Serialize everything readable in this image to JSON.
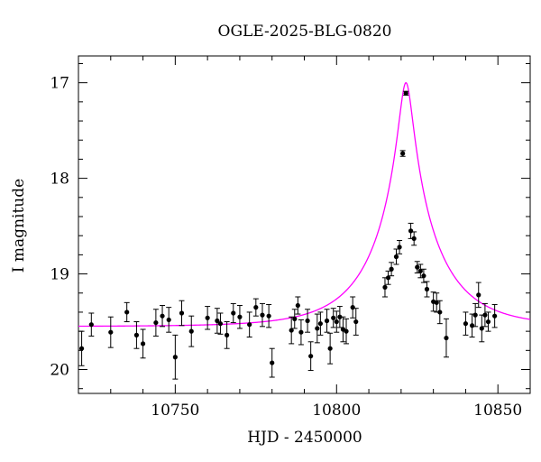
{
  "chart_data": {
    "type": "scatter",
    "title": "OGLE-2025-BLG-0820",
    "xlabel": "HJD - 2450000",
    "ylabel": "I magnitude",
    "xlim": [
      10720,
      10860
    ],
    "ylim": [
      20.25,
      16.72
    ],
    "y_inverted": true,
    "x_ticks": [
      10750,
      10800,
      10850
    ],
    "y_ticks": [
      17,
      18,
      19,
      20
    ],
    "grid": false,
    "legend": "none",
    "colors": {
      "points": "#000000",
      "model": "#ff00ff"
    },
    "model": {
      "kind": "microlensing-paczynski",
      "t0": 10821.5,
      "baseline_mag": 19.55,
      "peak_mag": 17.0
    },
    "series": [
      {
        "kind": "observations",
        "x": [
          10721,
          10724,
          10730,
          10735,
          10738,
          10740,
          10744,
          10746,
          10748,
          10750,
          10752,
          10755,
          10760,
          10763,
          10764,
          10766,
          10768,
          10770,
          10773,
          10775,
          10777,
          10779,
          10780,
          10786,
          10787,
          10788,
          10789,
          10791,
          10792,
          10794,
          10795,
          10797,
          10798,
          10799,
          10800,
          10801,
          10802,
          10803,
          10805,
          10806,
          10815,
          10816,
          10817,
          10818.5,
          10819.5,
          10820.5,
          10821.5,
          10823,
          10824,
          10825,
          10826,
          10827,
          10828,
          10830,
          10831,
          10832,
          10834,
          10840,
          10842,
          10843,
          10844,
          10845,
          10846,
          10847,
          10849
        ],
        "y": [
          19.78,
          19.53,
          19.61,
          19.4,
          19.64,
          19.73,
          19.51,
          19.44,
          19.48,
          19.87,
          19.41,
          19.6,
          19.46,
          19.49,
          19.52,
          19.64,
          19.41,
          19.45,
          19.53,
          19.35,
          19.43,
          19.44,
          19.93,
          19.59,
          19.47,
          19.33,
          19.61,
          19.49,
          19.86,
          19.57,
          19.52,
          19.49,
          19.78,
          19.46,
          19.5,
          19.45,
          19.58,
          19.6,
          19.35,
          19.5,
          19.14,
          19.04,
          18.95,
          18.82,
          18.72,
          17.74,
          17.11,
          18.55,
          18.63,
          18.93,
          18.97,
          19.02,
          19.16,
          19.29,
          19.3,
          19.4,
          19.67,
          19.52,
          19.54,
          19.43,
          19.22,
          19.57,
          19.43,
          19.5,
          19.44
        ],
        "err": [
          0.18,
          0.12,
          0.16,
          0.1,
          0.14,
          0.15,
          0.14,
          0.11,
          0.13,
          0.23,
          0.13,
          0.16,
          0.12,
          0.13,
          0.11,
          0.14,
          0.1,
          0.12,
          0.13,
          0.09,
          0.12,
          0.12,
          0.15,
          0.14,
          0.1,
          0.09,
          0.13,
          0.12,
          0.15,
          0.15,
          0.12,
          0.12,
          0.16,
          0.1,
          0.11,
          0.11,
          0.13,
          0.13,
          0.11,
          0.14,
          0.1,
          0.07,
          0.07,
          0.08,
          0.07,
          0.03,
          0.02,
          0.08,
          0.07,
          0.06,
          0.07,
          0.07,
          0.08,
          0.1,
          0.1,
          0.12,
          0.2,
          0.12,
          0.12,
          0.12,
          0.13,
          0.14,
          0.12,
          0.1,
          0.12
        ]
      }
    ]
  }
}
